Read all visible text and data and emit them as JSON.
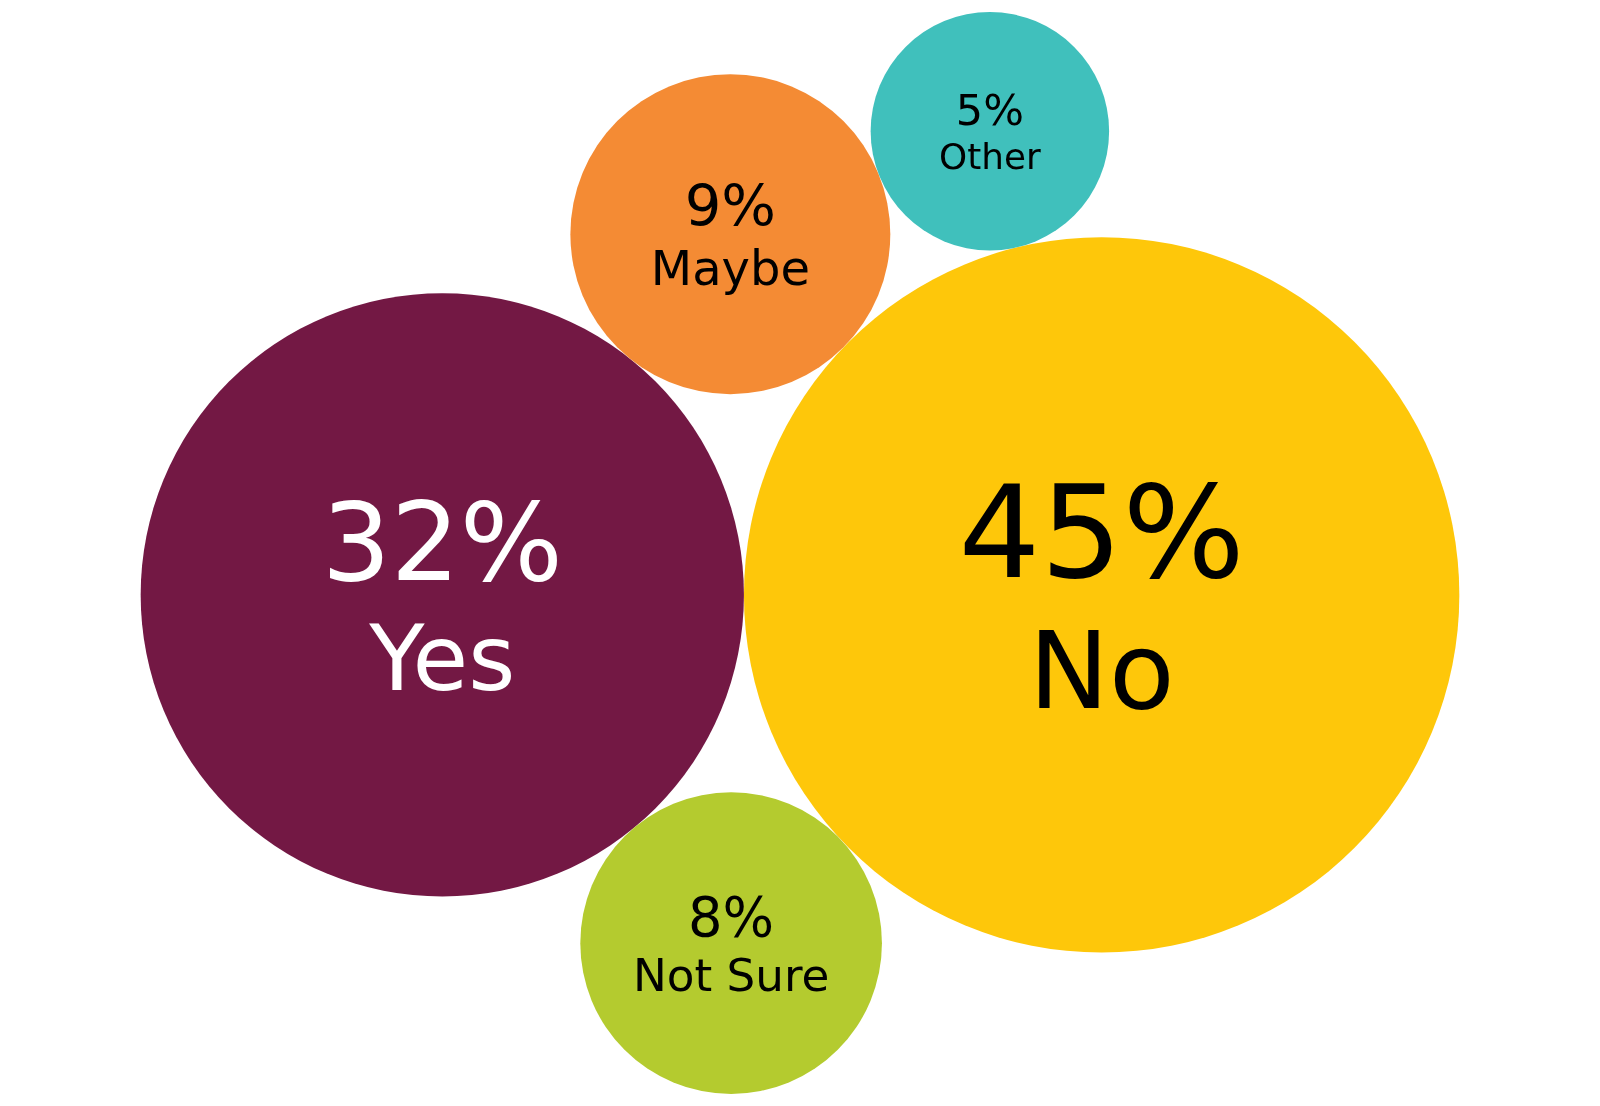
{
  "chart_data": {
    "type": "other",
    "categories": [
      "Yes",
      "No",
      "Maybe",
      "Not Sure",
      "Other"
    ],
    "values": [
      32,
      45,
      9,
      8,
      5
    ],
    "colors": [
      "#731844",
      "#fec70a",
      "#f48b34",
      "#b4cb2f",
      "#40c0bc"
    ],
    "value_labels": [
      "32%",
      "45%",
      "9%",
      "8%",
      "5%"
    ]
  }
}
